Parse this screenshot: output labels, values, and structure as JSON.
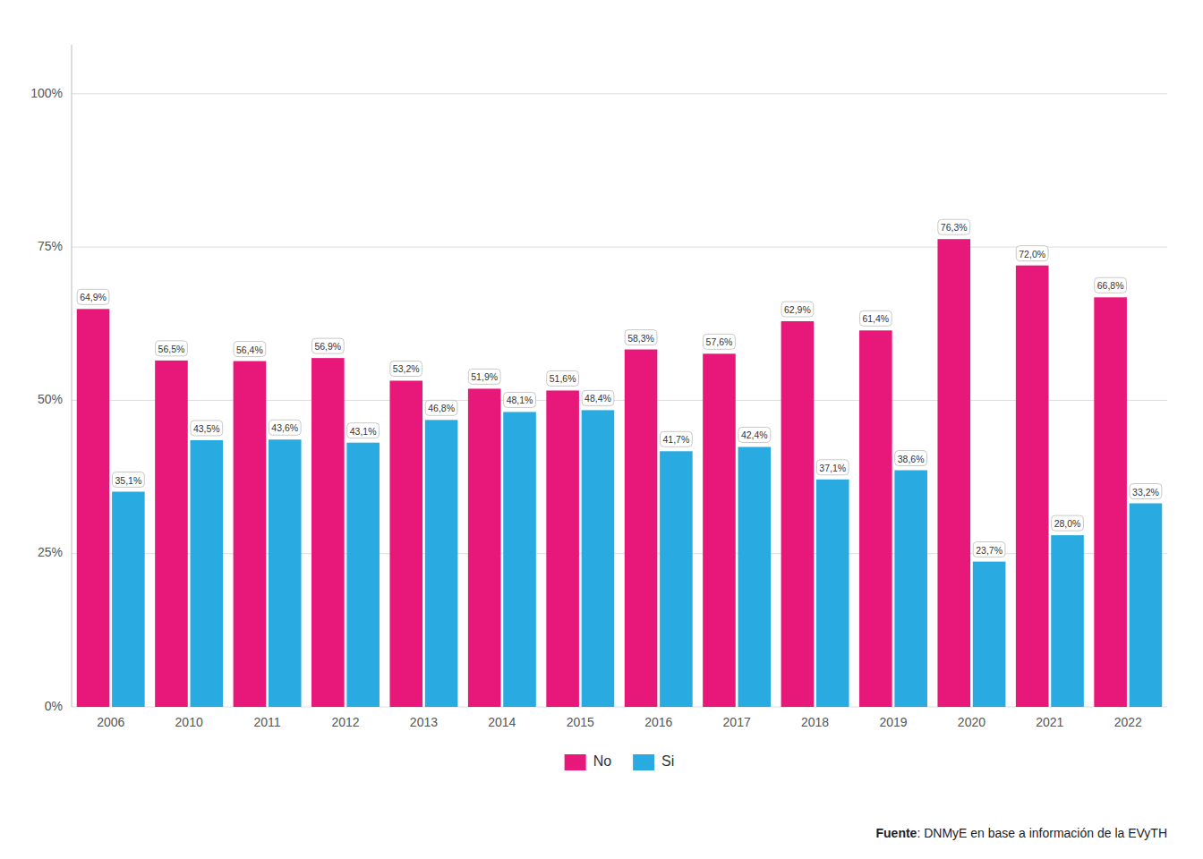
{
  "chart_data": {
    "type": "bar",
    "categories": [
      "2006",
      "2010",
      "2011",
      "2012",
      "2013",
      "2014",
      "2015",
      "2016",
      "2017",
      "2018",
      "2019",
      "2020",
      "2021",
      "2022"
    ],
    "series": [
      {
        "name": "No",
        "color": "#E8187A",
        "values": [
          64.9,
          56.5,
          56.4,
          56.9,
          53.2,
          51.9,
          51.6,
          58.3,
          57.6,
          62.9,
          61.4,
          76.3,
          72.0,
          66.8
        ],
        "value_labels": [
          "64,9%",
          "56,5%",
          "56,4%",
          "56,9%",
          "53,2%",
          "51,9%",
          "51,6%",
          "58,3%",
          "57,6%",
          "62,9%",
          "61,4%",
          "76,3%",
          "72,0%",
          "66,8%"
        ]
      },
      {
        "name": "Si",
        "color": "#29ABE2",
        "values": [
          35.1,
          43.5,
          43.6,
          43.1,
          46.8,
          48.1,
          48.4,
          41.7,
          42.4,
          37.1,
          38.6,
          23.7,
          28.0,
          33.2
        ],
        "value_labels": [
          "35,1%",
          "43,5%",
          "43,6%",
          "43,1%",
          "46,8%",
          "48,1%",
          "48,4%",
          "41,7%",
          "42,4%",
          "37,1%",
          "38,6%",
          "23,7%",
          "28,0%",
          "33,2%"
        ]
      }
    ],
    "ylim": [
      0,
      108
    ],
    "yticks": [
      {
        "value": 0,
        "label": "0%"
      },
      {
        "value": 25,
        "label": "25%"
      },
      {
        "value": 50,
        "label": "50%"
      },
      {
        "value": 75,
        "label": "75%"
      },
      {
        "value": 100,
        "label": "100%"
      }
    ],
    "grid": true,
    "legend": "bottom",
    "data_labels": true,
    "annotations": [
      "Fuente",
      ": DNMyE en base a información de la EVyTH"
    ]
  }
}
